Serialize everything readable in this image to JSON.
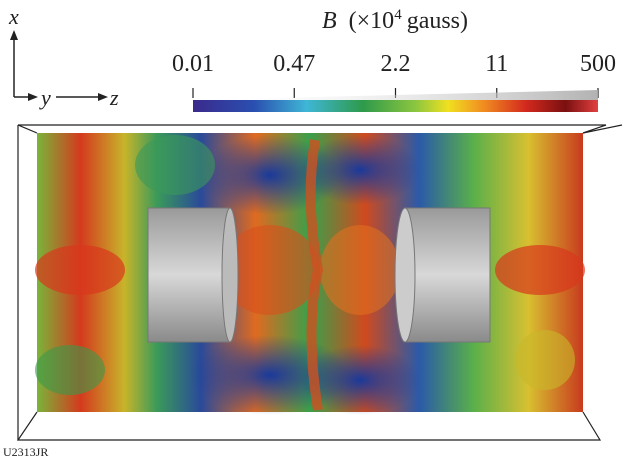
{
  "axes": {
    "x": "x",
    "y": "y",
    "z": "z"
  },
  "colorbar": {
    "symbol": "B",
    "unit_prefix": "(×10",
    "exponent": "4",
    "unit_suffix": "gauss)",
    "labels": [
      "0.01",
      "0.47",
      "2.2",
      "11",
      "500"
    ]
  },
  "figure_id": "U2313JR"
}
